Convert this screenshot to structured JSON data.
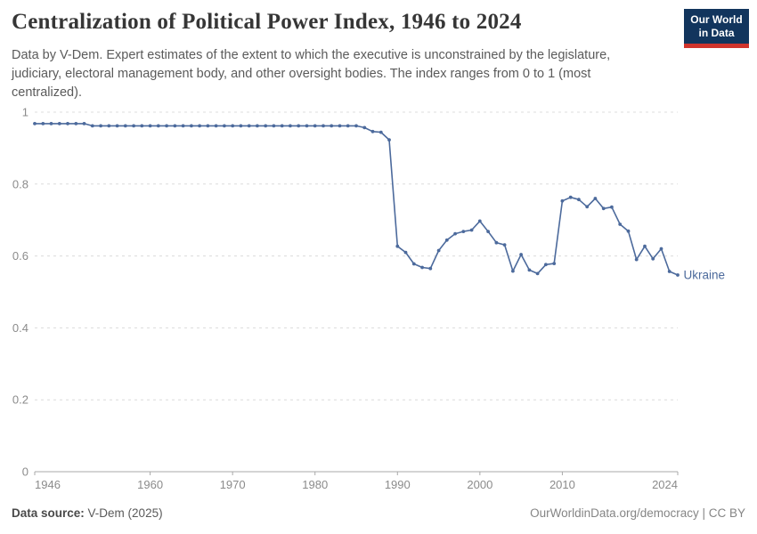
{
  "header": {
    "title": "Centralization of Political Power Index, 1946 to 2024",
    "subtitle": "Data by V-Dem. Expert estimates of the extent to which the executive is unconstrained by the legislature, judiciary, electoral management body, and other oversight bodies. The index ranges from 0 to 1 (most centralized).",
    "logo": {
      "line1": "Our World",
      "line2": "in Data",
      "bg_color": "#12355d",
      "accent_color": "#d0342c"
    }
  },
  "chart_data": {
    "type": "line",
    "title": "Centralization of Political Power Index, 1946 to 2024",
    "xlabel": "",
    "ylabel": "",
    "xlim": [
      1946,
      2024
    ],
    "ylim": [
      0,
      1
    ],
    "grid": "horizontal-dashed",
    "legend_position": "end-of-line-label",
    "x_ticks": [
      {
        "value": 1946,
        "label": "1946"
      },
      {
        "value": 1960,
        "label": "1960"
      },
      {
        "value": 1970,
        "label": "1970"
      },
      {
        "value": 1980,
        "label": "1980"
      },
      {
        "value": 1990,
        "label": "1990"
      },
      {
        "value": 2000,
        "label": "2000"
      },
      {
        "value": 2010,
        "label": "2010"
      },
      {
        "value": 2024,
        "label": "2024"
      }
    ],
    "y_ticks": [
      {
        "value": 0,
        "label": "0"
      },
      {
        "value": 0.2,
        "label": "0.2"
      },
      {
        "value": 0.4,
        "label": "0.4"
      },
      {
        "value": 0.6,
        "label": "0.6"
      },
      {
        "value": 0.8,
        "label": "0.8"
      },
      {
        "value": 1,
        "label": "1"
      }
    ],
    "series": [
      {
        "name": "Ukraine",
        "color": "#4c6a9c",
        "points": [
          [
            1946,
            0.968
          ],
          [
            1947,
            0.968
          ],
          [
            1948,
            0.968
          ],
          [
            1949,
            0.968
          ],
          [
            1950,
            0.968
          ],
          [
            1951,
            0.968
          ],
          [
            1952,
            0.968
          ],
          [
            1953,
            0.962
          ],
          [
            1954,
            0.962
          ],
          [
            1955,
            0.962
          ],
          [
            1956,
            0.962
          ],
          [
            1957,
            0.962
          ],
          [
            1958,
            0.962
          ],
          [
            1959,
            0.962
          ],
          [
            1960,
            0.962
          ],
          [
            1961,
            0.962
          ],
          [
            1962,
            0.962
          ],
          [
            1963,
            0.962
          ],
          [
            1964,
            0.962
          ],
          [
            1965,
            0.962
          ],
          [
            1966,
            0.962
          ],
          [
            1967,
            0.962
          ],
          [
            1968,
            0.962
          ],
          [
            1969,
            0.962
          ],
          [
            1970,
            0.962
          ],
          [
            1971,
            0.962
          ],
          [
            1972,
            0.962
          ],
          [
            1973,
            0.962
          ],
          [
            1974,
            0.962
          ],
          [
            1975,
            0.962
          ],
          [
            1976,
            0.962
          ],
          [
            1977,
            0.962
          ],
          [
            1978,
            0.962
          ],
          [
            1979,
            0.962
          ],
          [
            1980,
            0.962
          ],
          [
            1981,
            0.962
          ],
          [
            1982,
            0.962
          ],
          [
            1983,
            0.962
          ],
          [
            1984,
            0.962
          ],
          [
            1985,
            0.962
          ],
          [
            1986,
            0.957
          ],
          [
            1987,
            0.946
          ],
          [
            1988,
            0.944
          ],
          [
            1989,
            0.923
          ],
          [
            1990,
            0.627
          ],
          [
            1991,
            0.61
          ],
          [
            1992,
            0.578
          ],
          [
            1993,
            0.568
          ],
          [
            1994,
            0.565
          ],
          [
            1995,
            0.615
          ],
          [
            1996,
            0.644
          ],
          [
            1997,
            0.662
          ],
          [
            1998,
            0.668
          ],
          [
            1999,
            0.672
          ],
          [
            2000,
            0.697
          ],
          [
            2001,
            0.668
          ],
          [
            2002,
            0.637
          ],
          [
            2003,
            0.631
          ],
          [
            2004,
            0.558
          ],
          [
            2005,
            0.604
          ],
          [
            2006,
            0.561
          ],
          [
            2007,
            0.551
          ],
          [
            2008,
            0.576
          ],
          [
            2009,
            0.579
          ],
          [
            2010,
            0.753
          ],
          [
            2011,
            0.763
          ],
          [
            2012,
            0.757
          ],
          [
            2013,
            0.737
          ],
          [
            2014,
            0.76
          ],
          [
            2015,
            0.732
          ],
          [
            2016,
            0.736
          ],
          [
            2017,
            0.688
          ],
          [
            2018,
            0.669
          ],
          [
            2019,
            0.59
          ],
          [
            2020,
            0.627
          ],
          [
            2021,
            0.592
          ],
          [
            2022,
            0.62
          ],
          [
            2023,
            0.557
          ],
          [
            2024,
            0.547
          ]
        ]
      }
    ]
  },
  "footer": {
    "source_label": "Data source:",
    "source_value": "V-Dem (2025)",
    "credit": "OurWorldinData.org/democracy | CC BY"
  }
}
